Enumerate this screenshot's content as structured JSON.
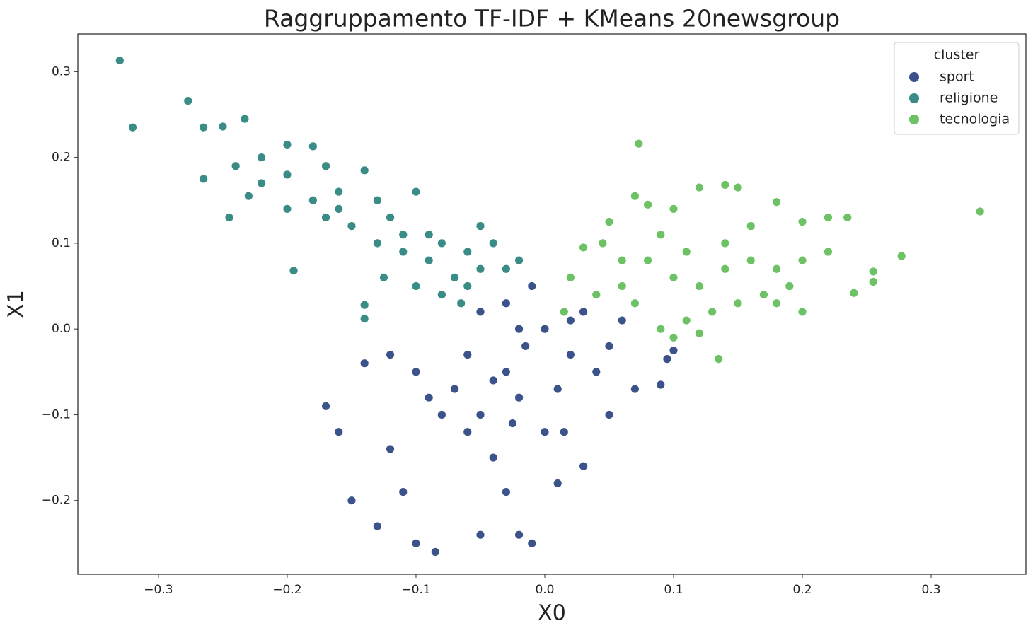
{
  "chart_data": {
    "type": "scatter",
    "title": "Raggruppamento TF-IDF + KMeans 20newsgroup",
    "x_label": "X0",
    "y_label": "X1",
    "legend_title": "cluster",
    "legend": "upper-right",
    "xlim": [
      -0.3626,
      0.3736
    ],
    "ylim": [
      -0.286,
      0.344
    ],
    "xticks": [
      {
        "value": -0.3,
        "label": "−0.3"
      },
      {
        "value": -0.2,
        "label": "−0.2"
      },
      {
        "value": -0.1,
        "label": "−0.1"
      },
      {
        "value": 0,
        "label": "0.0"
      },
      0.1,
      0.2,
      0.3
    ],
    "yticks": [
      {
        "value": -0.2,
        "label": "−0.2"
      },
      {
        "value": -0.1,
        "label": "−0.1"
      },
      {
        "value": 0,
        "label": "0.0"
      },
      0.1,
      0.2,
      0.3
    ],
    "series": [
      {
        "name": "sport",
        "color": "#3b528b",
        "x": [
          -0.05,
          -0.03,
          0,
          0.02,
          -0.02,
          -0.04,
          -0.06,
          -0.08,
          -0.1,
          -0.12,
          -0.14,
          -0.17,
          -0.16,
          -0.15,
          -0.13,
          -0.1,
          -0.085,
          -0.05,
          -0.02,
          -0.01,
          0.03,
          0.05,
          0.07,
          0.09,
          0.095,
          0.1,
          0.06,
          0.03,
          -0.01,
          -0.03,
          -0.05,
          -0.06,
          -0.09,
          -0.11,
          -0.12,
          0,
          0.01,
          -0.03,
          0.04,
          -0.015,
          0.01,
          -0.04,
          0.02,
          -0.02,
          0.05,
          -0.07,
          -0.025,
          0.015
        ],
        "values": [
          -0.1,
          -0.05,
          0,
          -0.03,
          -0.08,
          -0.15,
          -0.12,
          -0.1,
          -0.05,
          -0.03,
          -0.04,
          -0.09,
          -0.12,
          -0.2,
          -0.23,
          -0.25,
          -0.26,
          -0.24,
          -0.24,
          -0.25,
          -0.16,
          -0.1,
          -0.07,
          -0.065,
          -0.035,
          -0.025,
          0.01,
          0.02,
          0.05,
          0.03,
          0.02,
          -0.03,
          -0.08,
          -0.19,
          -0.14,
          -0.12,
          -0.18,
          -0.19,
          -0.05,
          -0.02,
          -0.07,
          -0.06,
          0.01,
          0,
          -0.02,
          -0.07,
          -0.11,
          -0.12
        ]
      },
      {
        "name": "religione",
        "color": "#3a8c86",
        "x": [
          -0.33,
          -0.32,
          -0.277,
          -0.265,
          -0.25,
          -0.233,
          -0.24,
          -0.265,
          -0.245,
          -0.22,
          -0.2,
          -0.18,
          -0.2,
          -0.17,
          -0.18,
          -0.16,
          -0.14,
          -0.15,
          -0.13,
          -0.12,
          -0.1,
          -0.11,
          -0.09,
          -0.08,
          -0.07,
          -0.06,
          -0.05,
          -0.04,
          -0.03,
          -0.195,
          -0.14,
          -0.14,
          -0.125,
          -0.1,
          -0.08,
          -0.065,
          -0.2,
          -0.22,
          -0.23,
          -0.16,
          -0.09,
          -0.05,
          -0.11,
          -0.06,
          -0.17,
          -0.13,
          -0.02
        ],
        "values": [
          0.313,
          0.235,
          0.266,
          0.235,
          0.236,
          0.245,
          0.19,
          0.175,
          0.13,
          0.2,
          0.215,
          0.213,
          0.18,
          0.19,
          0.15,
          0.14,
          0.185,
          0.12,
          0.1,
          0.13,
          0.16,
          0.09,
          0.08,
          0.1,
          0.06,
          0.05,
          0.12,
          0.1,
          0.07,
          0.068,
          0.028,
          0.012,
          0.06,
          0.05,
          0.04,
          0.03,
          0.14,
          0.17,
          0.155,
          0.16,
          0.11,
          0.07,
          0.11,
          0.09,
          0.13,
          0.15,
          0.08
        ]
      },
      {
        "name": "tecnologia",
        "color": "#6cc264",
        "x": [
          0.073,
          0.338,
          0.277,
          0.255,
          0.255,
          0.24,
          0.235,
          0.22,
          0.2,
          0.18,
          0.16,
          0.15,
          0.14,
          0.12,
          0.1,
          0.08,
          0.07,
          0.05,
          0.03,
          0.02,
          0.015,
          0.04,
          0.06,
          0.08,
          0.1,
          0.12,
          0.14,
          0.16,
          0.18,
          0.2,
          0.22,
          0.19,
          0.17,
          0.15,
          0.13,
          0.11,
          0.09,
          0.07,
          0.1,
          0.12,
          0.135,
          0.2,
          0.18,
          0.06,
          0.11,
          0.14,
          0.09,
          0.045
        ],
        "values": [
          0.216,
          0.137,
          0.085,
          0.067,
          0.055,
          0.042,
          0.13,
          0.13,
          0.125,
          0.148,
          0.12,
          0.165,
          0.168,
          0.165,
          0.14,
          0.145,
          0.155,
          0.125,
          0.095,
          0.06,
          0.02,
          0.04,
          0.05,
          0.08,
          0.06,
          0.05,
          0.07,
          0.08,
          0.07,
          0.08,
          0.09,
          0.05,
          0.04,
          0.03,
          0.02,
          0.01,
          0,
          0.03,
          -0.01,
          -0.005,
          -0.035,
          0.02,
          0.03,
          0.08,
          0.09,
          0.1,
          0.11,
          0.1
        ]
      }
    ]
  }
}
